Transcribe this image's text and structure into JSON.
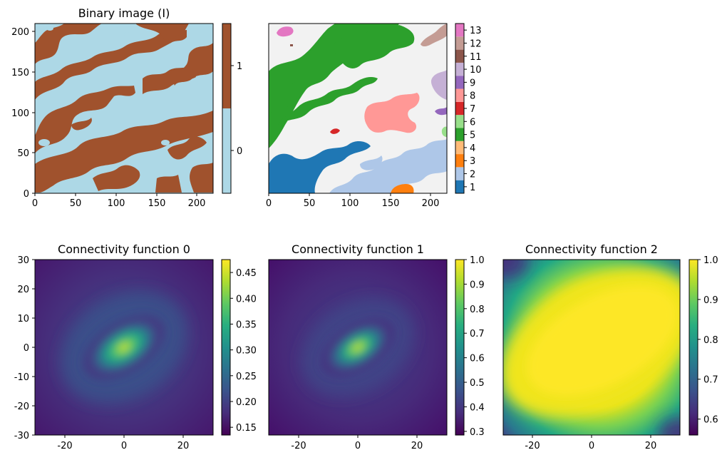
{
  "chart_data": [
    {
      "type": "heatmap",
      "title": "Binary image (I)",
      "xlabel": "",
      "ylabel": "",
      "xlim": [
        0,
        220
      ],
      "ylim": [
        0,
        210
      ],
      "xticks": [
        0,
        50,
        100,
        150,
        200
      ],
      "yticks": [
        0,
        50,
        100,
        150,
        200
      ],
      "colorbar": {
        "ticks": [
          0,
          1
        ],
        "range": [
          -0.5,
          1.5
        ],
        "categories": [
          0,
          1
        ],
        "colors": [
          "#add8e6",
          "#a0522d"
        ]
      }
    },
    {
      "type": "heatmap",
      "title": "",
      "xlabel": "",
      "ylabel": "",
      "xlim": [
        0,
        220
      ],
      "ylim": [
        0,
        210
      ],
      "xticks": [
        0,
        50,
        100,
        150,
        200
      ],
      "yticks": [],
      "background_color": "#f2f2f2",
      "colorbar": {
        "ticks": [
          1,
          2,
          3,
          4,
          5,
          6,
          7,
          8,
          9,
          10,
          11,
          12,
          13
        ],
        "range": [
          0.5,
          13.5
        ],
        "categories": [
          1,
          2,
          3,
          4,
          5,
          6,
          7,
          8,
          9,
          10,
          11,
          12,
          13
        ],
        "colors": [
          "#1f77b4",
          "#aec7e8",
          "#ff7f0e",
          "#ffbb78",
          "#2ca02c",
          "#98df8a",
          "#d62728",
          "#ff9896",
          "#9467bd",
          "#c5b0d5",
          "#8c564b",
          "#c49c94",
          "#e377c2"
        ]
      }
    },
    {
      "type": "heatmap",
      "title": "Connectivity function 0",
      "xlabel": "",
      "ylabel": "",
      "xlim": [
        -30,
        30
      ],
      "ylim": [
        -30,
        30
      ],
      "xticks": [
        -20,
        0,
        20
      ],
      "yticks": [
        -30,
        -20,
        -10,
        0,
        10,
        20,
        30
      ],
      "colormap": "viridis",
      "colorbar": {
        "range": [
          0.135,
          0.475
        ],
        "ticks": [
          0.15,
          0.2,
          0.25,
          0.3,
          0.35,
          0.4,
          0.45
        ]
      }
    },
    {
      "type": "heatmap",
      "title": "Connectivity function 1",
      "xlabel": "",
      "ylabel": "",
      "xlim": [
        -30,
        30
      ],
      "ylim": [
        -30,
        30
      ],
      "xticks": [
        -20,
        0,
        20
      ],
      "yticks": [],
      "colormap": "viridis",
      "colorbar": {
        "range": [
          0.285,
          1.0
        ],
        "ticks": [
          0.3,
          0.4,
          0.5,
          0.6,
          0.7,
          0.8,
          0.9,
          1.0
        ]
      }
    },
    {
      "type": "heatmap",
      "title": "Connectivity function 2",
      "xlabel": "",
      "ylabel": "",
      "xlim": [
        -30,
        30
      ],
      "ylim": [
        -30,
        30
      ],
      "xticks": [
        -20,
        0,
        20
      ],
      "yticks": [],
      "colormap": "viridis",
      "colorbar": {
        "range": [
          0.56,
          1.0
        ],
        "ticks": [
          0.6,
          0.7,
          0.8,
          0.9,
          1.0
        ]
      }
    }
  ]
}
